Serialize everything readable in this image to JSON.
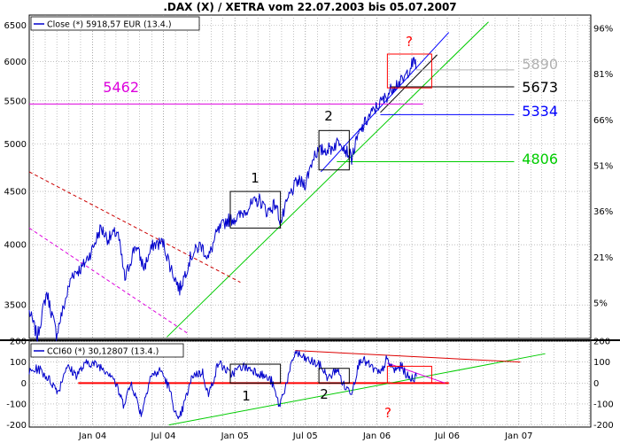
{
  "chart_data": {
    "type": "line",
    "title": ".DAX (X) / XETRA vom 22.07.2003 bis 05.07.2007",
    "colors": {
      "price": "#0000cc",
      "green": "#00cc00",
      "magenta": "#dd00dd",
      "red": "#ff0000",
      "redline": "#cc0000",
      "gray": "#b0b0b0",
      "black": "#000000",
      "blue": "#0000ff",
      "grid": "#9a9a9a"
    },
    "x_labels": [
      "Jan 04",
      "Jul 04",
      "Jan 05",
      "Jul 05",
      "Jan 06",
      "Jul 06",
      "Jan 07"
    ],
    "main": {
      "legend": "Close (*) 5918,57 EUR (13.4.)",
      "y_left_ticks": [
        3500,
        4000,
        4500,
        5000,
        5500,
        6000,
        6500
      ],
      "y_right_ticks": [
        "5%",
        "21%",
        "36%",
        "51%",
        "66%",
        "81%",
        "96%"
      ],
      "ylim": [
        3250,
        6650
      ],
      "scale": "log",
      "price_anchors": [
        [
          "2003-07-22",
          3450
        ],
        [
          "2003-08-12",
          3260
        ],
        [
          "2003-09-05",
          3600
        ],
        [
          "2003-09-30",
          3280
        ],
        [
          "2003-10-20",
          3500
        ],
        [
          "2003-11-10",
          3750
        ],
        [
          "2003-12-05",
          3800
        ],
        [
          "2003-12-30",
          3950
        ],
        [
          "2004-01-22",
          4150
        ],
        [
          "2004-02-10",
          4050
        ],
        [
          "2004-03-05",
          4120
        ],
        [
          "2004-03-24",
          3700
        ],
        [
          "2004-04-20",
          4000
        ],
        [
          "2004-05-12",
          3800
        ],
        [
          "2004-06-05",
          4000
        ],
        [
          "2004-06-30",
          4020
        ],
        [
          "2004-07-20",
          3800
        ],
        [
          "2004-08-12",
          3620
        ],
        [
          "2004-09-10",
          3900
        ],
        [
          "2004-10-05",
          4000
        ],
        [
          "2004-10-25",
          3880
        ],
        [
          "2004-11-15",
          4100
        ],
        [
          "2004-12-10",
          4220
        ],
        [
          "2005-01-10",
          4250
        ],
        [
          "2005-02-05",
          4350
        ],
        [
          "2005-03-05",
          4420
        ],
        [
          "2005-03-25",
          4300
        ],
        [
          "2005-04-15",
          4380
        ],
        [
          "2005-04-29",
          4200
        ],
        [
          "2005-05-20",
          4450
        ],
        [
          "2005-06-10",
          4600
        ],
        [
          "2005-07-01",
          4580
        ],
        [
          "2005-07-25",
          4900
        ],
        [
          "2005-08-15",
          4930
        ],
        [
          "2005-09-05",
          4950
        ],
        [
          "2005-09-30",
          5050
        ],
        [
          "2005-10-10",
          4950
        ],
        [
          "2005-10-28",
          4850
        ],
        [
          "2005-11-15",
          5100
        ],
        [
          "2005-12-10",
          5300
        ],
        [
          "2006-01-05",
          5450
        ],
        [
          "2006-01-25",
          5550
        ],
        [
          "2006-02-15",
          5700
        ],
        [
          "2006-03-10",
          5750
        ],
        [
          "2006-03-30",
          5950
        ],
        [
          "2006-04-10",
          6000
        ],
        [
          "2006-04-13",
          5918
        ]
      ],
      "annotations": [
        {
          "text": "1",
          "color": "#000000"
        },
        {
          "text": "2",
          "color": "#000000"
        },
        {
          "text": "?",
          "color": "#ff0000"
        },
        {
          "text": "5462",
          "color": "#dd00dd",
          "value": 5462
        },
        {
          "text": "5890",
          "color": "#b0b0b0",
          "value": 5890
        },
        {
          "text": "5673",
          "color": "#000000",
          "value": 5673
        },
        {
          "text": "5334",
          "color": "#0000ff",
          "value": 5334
        },
        {
          "text": "4806",
          "color": "#00cc00",
          "value": 4806
        }
      ],
      "boxes": [
        {
          "from": "2004-12-20",
          "to": "2005-04-28",
          "low": 4150,
          "high": 4500,
          "color": "#000000"
        },
        {
          "from": "2005-08-05",
          "to": "2005-10-22",
          "low": 4720,
          "high": 5150,
          "color": "#000000"
        },
        {
          "from": "2006-01-28",
          "to": "2006-05-22",
          "low": 5660,
          "high": 6100,
          "color": "#ff0000"
        }
      ],
      "lines": [
        {
          "name": "green-trendline",
          "color": "#00cc00",
          "dash": "",
          "from": [
            "2004-07-10",
            3260
          ],
          "to": [
            "2006-10-15",
            6550
          ]
        },
        {
          "name": "blue-trendline",
          "color": "#0000ff",
          "dash": "",
          "from": [
            "2005-08-10",
            4700
          ],
          "to": [
            "2006-07-05",
            6400
          ]
        },
        {
          "name": "black-trendline",
          "color": "#000000",
          "dash": "",
          "from": [
            "2006-01-10",
            5360
          ],
          "to": [
            "2006-06-05",
            6090
          ]
        },
        {
          "name": "red-dashed-channel",
          "color": "#cc0000",
          "dash": "4,3",
          "from": [
            "2003-07-22",
            4700
          ],
          "to": [
            "2005-01-15",
            3680
          ]
        },
        {
          "name": "magenta-dashed-channel",
          "color": "#dd00dd",
          "dash": "4,3",
          "from": [
            "2003-07-22",
            4150
          ],
          "to": [
            "2004-09-05",
            3280
          ]
        },
        {
          "name": "gray-level",
          "color": "#b0b0b0",
          "dash": "",
          "from": [
            "2006-04-12",
            5890
          ],
          "to": [
            "2006-12-20",
            5890
          ]
        },
        {
          "name": "black-level",
          "color": "#000000",
          "dash": "",
          "from": [
            "2006-02-05",
            5673
          ],
          "to": [
            "2006-12-20",
            5673
          ]
        },
        {
          "name": "blue-level",
          "color": "#0000ff",
          "dash": "",
          "from": [
            "2006-01-10",
            5334
          ],
          "to": [
            "2006-12-20",
            5334
          ]
        },
        {
          "name": "green-level",
          "color": "#00cc00",
          "dash": "",
          "from": [
            "2005-09-20",
            4806
          ],
          "to": [
            "2006-12-20",
            4806
          ]
        },
        {
          "name": "magenta-level",
          "color": "#dd00dd",
          "dash": "",
          "from": [
            "2003-07-22",
            5462
          ],
          "to": [
            "2006-04-30",
            5462
          ]
        }
      ]
    },
    "cci": {
      "legend": "CCI60 (*) 30,12807 (13.4.)",
      "y_ticks": [
        -200,
        -100,
        0,
        100,
        200
      ],
      "ylim": [
        -210,
        200
      ],
      "cci_anchors": [
        [
          "2003-07-22",
          50
        ],
        [
          "2003-08-15",
          70
        ],
        [
          "2003-09-10",
          20
        ],
        [
          "2003-10-05",
          -40
        ],
        [
          "2003-10-25",
          80
        ],
        [
          "2003-11-20",
          40
        ],
        [
          "2003-12-20",
          100
        ],
        [
          "2004-01-20",
          80
        ],
        [
          "2004-02-20",
          40
        ],
        [
          "2004-03-20",
          -100
        ],
        [
          "2004-04-10",
          0
        ],
        [
          "2004-05-05",
          -150
        ],
        [
          "2004-05-28",
          30
        ],
        [
          "2004-06-25",
          60
        ],
        [
          "2004-07-15",
          -20
        ],
        [
          "2004-08-08",
          -190
        ],
        [
          "2004-08-20",
          -120
        ],
        [
          "2004-09-15",
          40
        ],
        [
          "2004-10-10",
          50
        ],
        [
          "2004-10-25",
          -60
        ],
        [
          "2004-11-20",
          100
        ],
        [
          "2004-12-20",
          40
        ],
        [
          "2005-01-20",
          80
        ],
        [
          "2005-02-20",
          60
        ],
        [
          "2005-03-10",
          40
        ],
        [
          "2005-04-05",
          10
        ],
        [
          "2005-04-25",
          -110
        ],
        [
          "2005-05-20",
          40
        ],
        [
          "2005-06-05",
          150
        ],
        [
          "2005-06-25",
          120
        ],
        [
          "2005-07-20",
          100
        ],
        [
          "2005-08-10",
          80
        ],
        [
          "2005-08-30",
          20
        ],
        [
          "2005-09-20",
          70
        ],
        [
          "2005-10-10",
          -20
        ],
        [
          "2005-10-28",
          -40
        ],
        [
          "2005-11-20",
          120
        ],
        [
          "2005-12-15",
          80
        ],
        [
          "2006-01-10",
          40
        ],
        [
          "2006-01-25",
          110
        ],
        [
          "2006-02-15",
          60
        ],
        [
          "2006-03-05",
          80
        ],
        [
          "2006-03-25",
          20
        ],
        [
          "2006-04-13",
          30
        ]
      ],
      "boxes": [
        {
          "from": "2004-12-20",
          "to": "2005-04-28",
          "low": 0,
          "high": 90,
          "color": "#000000"
        },
        {
          "from": "2005-08-05",
          "to": "2005-10-22",
          "low": 0,
          "high": 70,
          "color": "#000000"
        },
        {
          "from": "2006-01-28",
          "to": "2006-05-22",
          "low": 0,
          "high": 80,
          "color": "#ff0000"
        }
      ],
      "annotations": [
        {
          "text": "1",
          "color": "#000000"
        },
        {
          "text": "2",
          "color": "#000000"
        },
        {
          "text": "?",
          "color": "#ff0000"
        }
      ],
      "lines": [
        {
          "name": "cci-zero-redline",
          "color": "#ff0000",
          "width": 2,
          "from": [
            "2003-11-25",
            0
          ],
          "to": [
            "2006-07-05",
            0
          ]
        },
        {
          "name": "cci-green-trendline",
          "color": "#00cc00",
          "width": 1,
          "from": [
            "2004-07-15",
            -200
          ],
          "to": [
            "2007-03-10",
            140
          ]
        },
        {
          "name": "cci-upper-redline",
          "color": "#dd0000",
          "width": 1,
          "from": [
            "2005-06-05",
            155
          ],
          "to": [
            "2007-01-05",
            100
          ]
        },
        {
          "name": "cci-magenta-line",
          "color": "#dd00dd",
          "width": 1,
          "from": [
            "2006-01-28",
            95
          ],
          "to": [
            "2006-06-25",
            0
          ]
        }
      ]
    }
  }
}
